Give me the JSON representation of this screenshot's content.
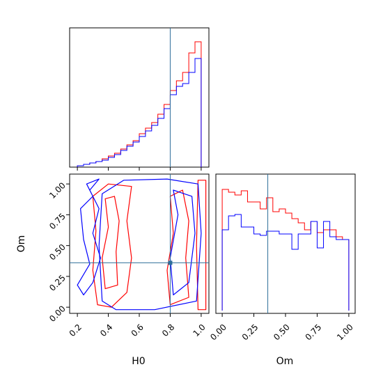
{
  "colors": {
    "series_a": "#ff0000",
    "series_b": "#0000ff",
    "truth": "#2f6f9a"
  },
  "chart_data": [
    {
      "name": "h0-marginal",
      "type": "histogram",
      "xlim": [
        0.15,
        1.05
      ],
      "truth": 0.8,
      "bin_edges": [
        0.2,
        0.24,
        0.28,
        0.32,
        0.36,
        0.4,
        0.44,
        0.48,
        0.52,
        0.56,
        0.6,
        0.64,
        0.68,
        0.72,
        0.76,
        0.8,
        0.84,
        0.88,
        0.92,
        0.96,
        1.0
      ],
      "series": [
        {
          "color": "#ff0000",
          "values": [
            1,
            2,
            3,
            4,
            6,
            8,
            10,
            13,
            16,
            19,
            24,
            28,
            32,
            38,
            45,
            55,
            62,
            68,
            82,
            90
          ]
        },
        {
          "color": "#0000ff",
          "values": [
            1,
            2,
            3,
            4,
            5,
            7,
            9,
            12,
            15,
            18,
            22,
            26,
            30,
            35,
            42,
            52,
            58,
            60,
            68,
            78
          ]
        }
      ],
      "ylim": [
        0,
        100
      ]
    },
    {
      "name": "om-marginal",
      "type": "histogram",
      "xlim": [
        -0.05,
        1.05
      ],
      "truth": 0.36,
      "xticks": [
        "0.00",
        "0.25",
        "0.50",
        "0.75",
        "1.00"
      ],
      "xlabel": "Om",
      "bin_edges": [
        0.0,
        0.05,
        0.1,
        0.15,
        0.2,
        0.25,
        0.3,
        0.35,
        0.4,
        0.45,
        0.5,
        0.55,
        0.6,
        0.65,
        0.7,
        0.75,
        0.8,
        0.85,
        0.9,
        0.95,
        1.0
      ],
      "series": [
        {
          "color": "#ff0000",
          "values": [
            89,
            87,
            85,
            88,
            80,
            80,
            75,
            83,
            73,
            75,
            72,
            68,
            65,
            60,
            66,
            58,
            60,
            60,
            55,
            53
          ]
        },
        {
          "color": "#0000ff",
          "values": [
            60,
            70,
            71,
            62,
            62,
            57,
            56,
            59,
            59,
            57,
            57,
            46,
            57,
            57,
            66,
            47,
            66,
            55,
            53,
            53
          ]
        }
      ],
      "ylim": [
        0,
        100
      ]
    },
    {
      "name": "h0-om-2d",
      "type": "contour",
      "xlim": [
        0.15,
        1.05
      ],
      "ylim": [
        -0.05,
        1.08
      ],
      "xticks": [
        "0.2",
        "0.4",
        "0.6",
        "0.8",
        "1.0"
      ],
      "yticks": [
        "0.00",
        "0.25",
        "0.50",
        "0.75",
        "1.00"
      ],
      "xlabel": "H0",
      "ylabel": "Om",
      "truth": {
        "x": 0.8,
        "y": 0.36
      },
      "series": [
        {
          "color": "#ff0000",
          "contours": [
            [
              [
                0.33,
                0.02
              ],
              [
                0.3,
                0.3
              ],
              [
                0.32,
                0.62
              ],
              [
                0.3,
                0.9
              ],
              [
                0.4,
                1.0
              ],
              [
                0.55,
                0.98
              ],
              [
                0.52,
                0.7
              ],
              [
                0.55,
                0.4
              ],
              [
                0.52,
                0.12
              ],
              [
                0.42,
                0.0
              ]
            ],
            [
              [
                0.38,
                0.15
              ],
              [
                0.36,
                0.4
              ],
              [
                0.4,
                0.65
              ],
              [
                0.38,
                0.88
              ],
              [
                0.44,
                0.9
              ],
              [
                0.47,
                0.7
              ],
              [
                0.45,
                0.45
              ],
              [
                0.46,
                0.18
              ]
            ],
            [
              [
                0.8,
                0.02
              ],
              [
                0.78,
                0.3
              ],
              [
                0.82,
                0.6
              ],
              [
                0.8,
                0.9
              ],
              [
                0.88,
                0.95
              ],
              [
                0.92,
                0.7
              ],
              [
                0.9,
                0.4
              ],
              [
                0.92,
                0.08
              ]
            ],
            [
              [
                0.98,
                -0.02
              ],
              [
                0.97,
                0.5
              ],
              [
                0.98,
                1.03
              ],
              [
                1.03,
                1.03
              ],
              [
                1.03,
                -0.02
              ]
            ]
          ]
        },
        {
          "color": "#0000ff",
          "contours": [
            [
              [
                0.2,
                0.18
              ],
              [
                0.28,
                0.35
              ],
              [
                0.24,
                0.55
              ],
              [
                0.22,
                0.8
              ],
              [
                0.3,
                0.9
              ],
              [
                0.26,
                1.0
              ],
              [
                0.34,
                1.04
              ],
              [
                0.28,
                0.95
              ],
              [
                0.34,
                0.8
              ],
              [
                0.3,
                0.6
              ],
              [
                0.35,
                0.4
              ],
              [
                0.3,
                0.2
              ],
              [
                0.24,
                0.1
              ]
            ],
            [
              [
                0.36,
                0.05
              ],
              [
                0.34,
                0.5
              ],
              [
                0.36,
                0.92
              ],
              [
                0.5,
                1.03
              ],
              [
                0.78,
                1.04
              ],
              [
                0.98,
                1.0
              ],
              [
                1.0,
                0.6
              ],
              [
                0.97,
                0.05
              ],
              [
                0.7,
                -0.02
              ],
              [
                0.45,
                -0.02
              ]
            ],
            [
              [
                0.82,
                0.1
              ],
              [
                0.8,
                0.4
              ],
              [
                0.85,
                0.75
              ],
              [
                0.82,
                0.95
              ],
              [
                0.94,
                0.9
              ],
              [
                0.96,
                0.6
              ],
              [
                0.92,
                0.2
              ]
            ]
          ]
        }
      ]
    }
  ]
}
